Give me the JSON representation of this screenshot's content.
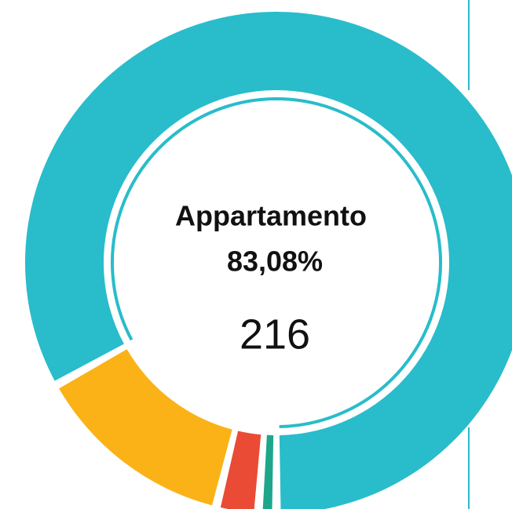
{
  "chart_data": {
    "type": "donut",
    "categories": [
      "Appartamento",
      null,
      null,
      null
    ],
    "values": [
      216,
      34,
      7,
      3
    ],
    "value_labels": [
      "83,08%",
      null,
      null,
      null
    ],
    "colors": [
      "#29bccb",
      "#fbb217",
      "#ea4b35",
      "#1ea68a"
    ]
  }
}
